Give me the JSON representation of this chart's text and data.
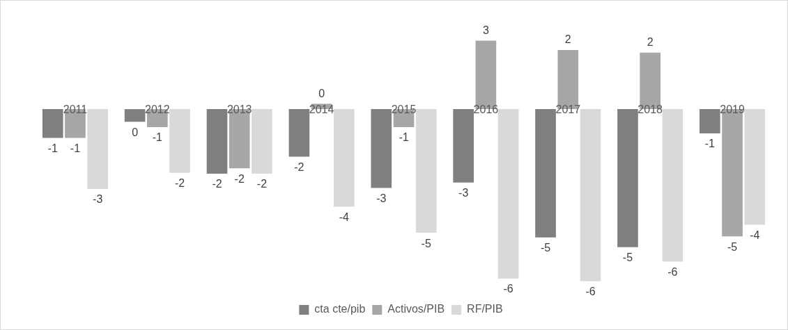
{
  "chart_data": {
    "type": "bar",
    "categories": [
      "2011",
      "2012",
      "2013",
      "2014",
      "2015",
      "2016",
      "2017",
      "2018",
      "2019"
    ],
    "series": [
      {
        "name": "cta cte/pib",
        "color": "#7f7f7f",
        "values": [
          -1.07,
          -0.47,
          -2.4,
          -1.77,
          -2.93,
          -2.73,
          -4.77,
          -5.13,
          -0.9
        ],
        "value_labels": [
          "-1",
          "0",
          "-2",
          "-2",
          "-3",
          "-3",
          "-5",
          "-5",
          "-1"
        ]
      },
      {
        "name": "Activos/PIB",
        "color": "#a6a6a6",
        "values": [
          -1.07,
          -0.67,
          -2.2,
          0.2,
          -0.67,
          2.55,
          2.2,
          2.1,
          -4.73
        ],
        "value_labels": [
          "-1",
          "-1",
          "-2",
          "0",
          "-1",
          "3",
          "2",
          "2",
          "-5"
        ]
      },
      {
        "name": "RF/PIB",
        "color": "#d9d9d9",
        "values": [
          -2.97,
          -2.37,
          -2.4,
          -3.63,
          -4.6,
          -6.3,
          -6.4,
          -5.67,
          -4.3
        ],
        "value_labels": [
          "-3",
          "-2",
          "-2",
          "-4",
          "-5",
          "-6",
          "-6",
          "-6",
          "-4"
        ]
      }
    ],
    "relative": false,
    "grid": false,
    "legend": "bottom"
  }
}
